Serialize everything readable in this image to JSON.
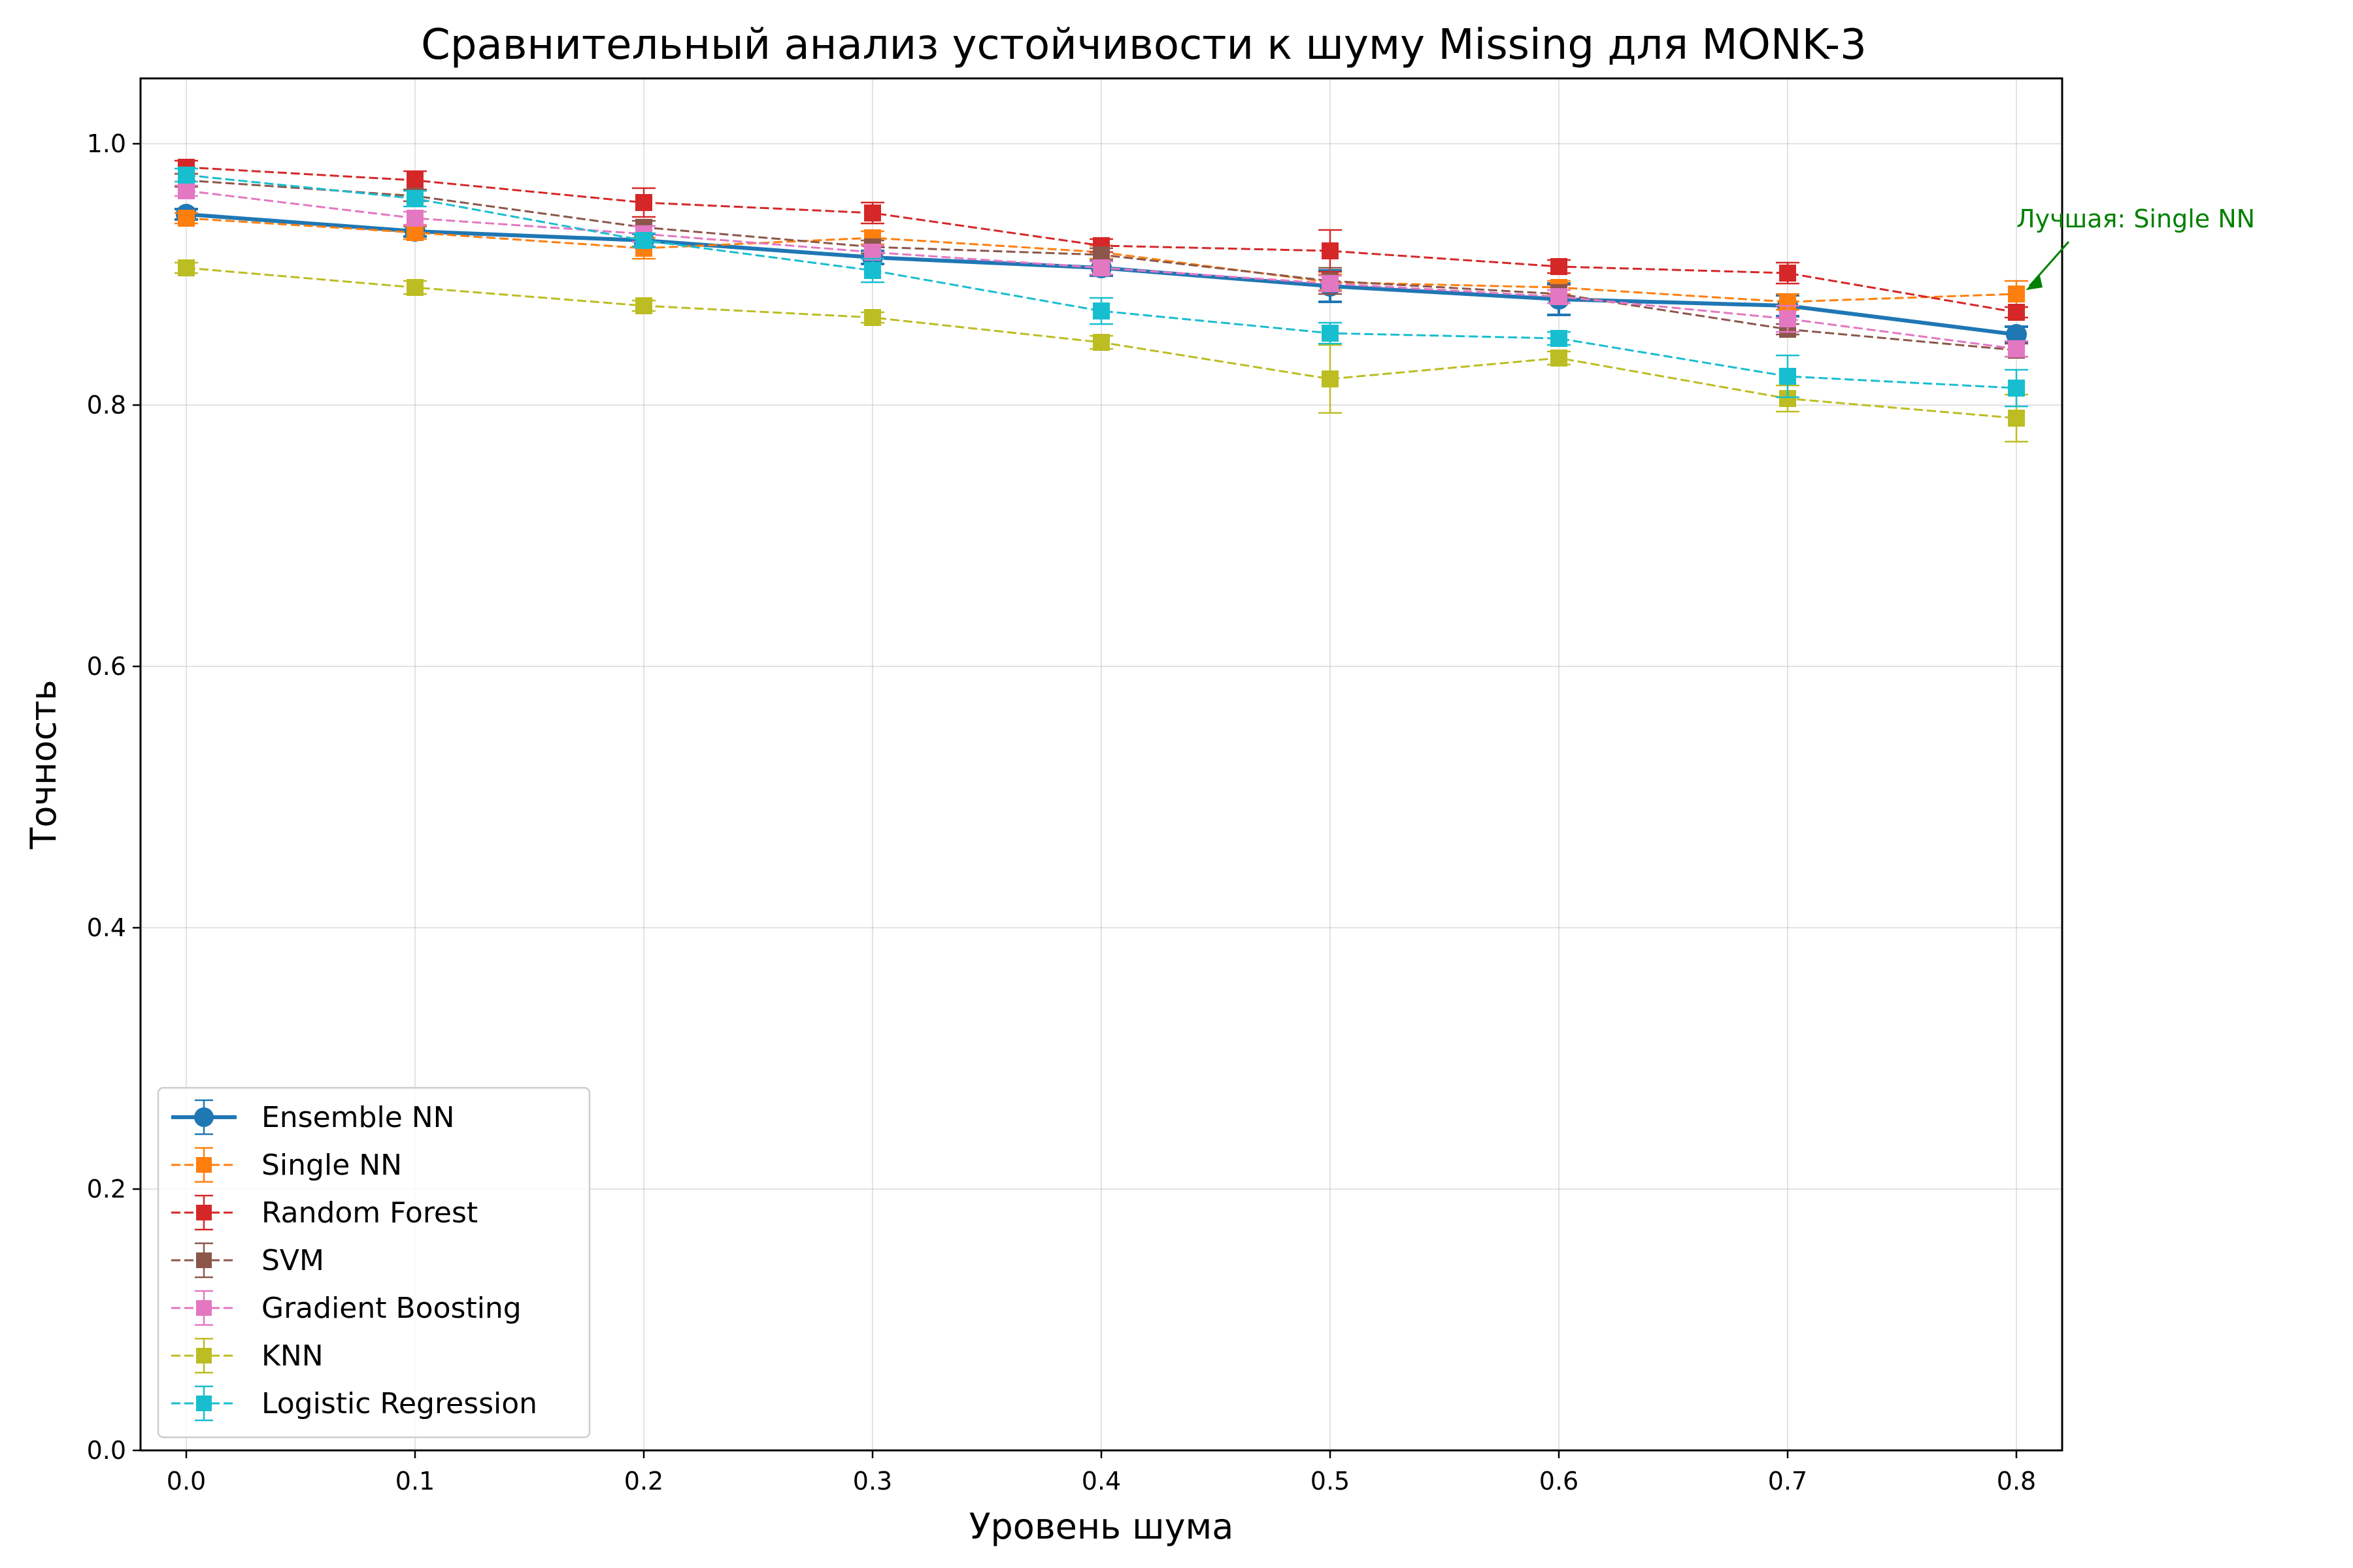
{
  "chart_data": {
    "type": "line",
    "title": "Сравнительный анализ устойчивости к шуму Missing для MONK-3",
    "xlabel": "Уровень шума",
    "ylabel": "Точность",
    "x": [
      0.0,
      0.1,
      0.2,
      0.3,
      0.4,
      0.5,
      0.6,
      0.7,
      0.8
    ],
    "x_tick_labels": [
      "0.0",
      "0.1",
      "0.2",
      "0.3",
      "0.4",
      "0.5",
      "0.6",
      "0.7",
      "0.8"
    ],
    "y_ticks": [
      0.0,
      0.2,
      0.4,
      0.6,
      0.8,
      1.0
    ],
    "y_tick_labels": [
      "0.0",
      "0.2",
      "0.4",
      "0.6",
      "0.8",
      "1.0"
    ],
    "xlim": [
      -0.02,
      0.82
    ],
    "ylim": [
      0.0,
      1.05
    ],
    "grid": true,
    "legend_position": "lower-left",
    "series": [
      {
        "name": "Ensemble NN",
        "color": "#1f77b4",
        "marker": "circle",
        "style": "solid",
        "values": [
          0.946,
          0.933,
          0.926,
          0.913,
          0.905,
          0.891,
          0.881,
          0.876,
          0.854
        ],
        "errors": [
          0.004,
          0.004,
          0.005,
          0.005,
          0.006,
          0.012,
          0.012,
          0.008,
          0.006
        ]
      },
      {
        "name": "Single NN",
        "color": "#ff7f0e",
        "marker": "square",
        "style": "dashed",
        "values": [
          0.943,
          0.932,
          0.92,
          0.928,
          0.917,
          0.894,
          0.89,
          0.879,
          0.885
        ],
        "errors": [
          0.004,
          0.005,
          0.008,
          0.005,
          0.005,
          0.006,
          0.005,
          0.006,
          0.01
        ]
      },
      {
        "name": "Random Forest",
        "color": "#d62728",
        "marker": "square",
        "style": "dashed",
        "values": [
          0.982,
          0.972,
          0.955,
          0.947,
          0.922,
          0.918,
          0.906,
          0.901,
          0.871
        ],
        "errors": [
          0.005,
          0.007,
          0.011,
          0.008,
          0.005,
          0.016,
          0.005,
          0.008,
          0.004
        ]
      },
      {
        "name": "SVM",
        "color": "#8c564b",
        "marker": "square",
        "style": "dashed",
        "values": [
          0.972,
          0.96,
          0.936,
          0.921,
          0.915,
          0.895,
          0.885,
          0.858,
          0.842
        ],
        "errors": [
          0.005,
          0.004,
          0.005,
          0.005,
          0.005,
          0.01,
          0.007,
          0.004,
          0.005
        ]
      },
      {
        "name": "Gradient Boosting",
        "color": "#e377c2",
        "marker": "square",
        "style": "dashed",
        "values": [
          0.964,
          0.943,
          0.931,
          0.917,
          0.905,
          0.893,
          0.883,
          0.866,
          0.843
        ],
        "errors": [
          0.004,
          0.005,
          0.006,
          0.005,
          0.005,
          0.006,
          0.005,
          0.01,
          0.006
        ]
      },
      {
        "name": "KNN",
        "color": "#bcbd22",
        "marker": "square",
        "style": "dashed",
        "values": [
          0.905,
          0.89,
          0.876,
          0.867,
          0.848,
          0.82,
          0.836,
          0.805,
          0.79
        ],
        "errors": [
          0.004,
          0.005,
          0.004,
          0.004,
          0.005,
          0.026,
          0.005,
          0.01,
          0.018
        ]
      },
      {
        "name": "Logistic Regression",
        "color": "#17becf",
        "marker": "square",
        "style": "dashed",
        "values": [
          0.976,
          0.958,
          0.926,
          0.903,
          0.872,
          0.855,
          0.851,
          0.822,
          0.813
        ],
        "errors": [
          0.005,
          0.006,
          0.005,
          0.009,
          0.01,
          0.008,
          0.005,
          0.016,
          0.014
        ]
      }
    ],
    "annotation": {
      "text": "Лучшая: Single NN",
      "color": "#008000",
      "point": {
        "x": 0.8,
        "y": 0.885
      },
      "text_position": {
        "x": 0.8,
        "y": 0.94
      }
    }
  }
}
